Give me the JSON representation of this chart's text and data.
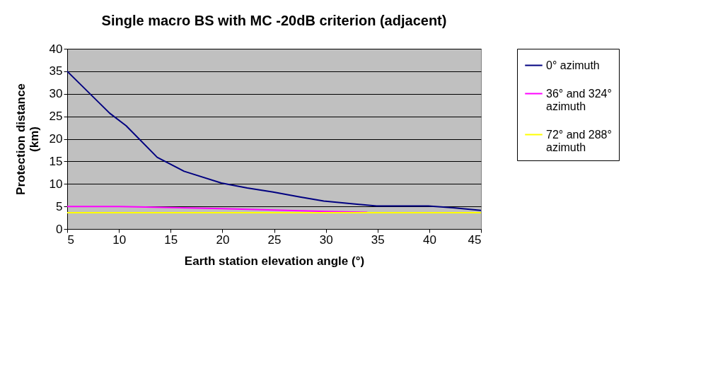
{
  "chart_data": {
    "type": "line",
    "title": "Single macro BS with MC -20dB criterion (adjacent)",
    "xlabel": "Earth station elevation angle (°)",
    "ylabel": "Protection distance (km)",
    "xlim": [
      5,
      45
    ],
    "xticks": [
      5,
      10,
      15,
      20,
      25,
      30,
      35,
      40,
      45
    ],
    "ylim": [
      0,
      40
    ],
    "yticks": [
      0,
      5,
      10,
      15,
      20,
      25,
      30,
      35,
      40
    ],
    "grid": "y",
    "legend": "right",
    "marker": "none",
    "line_style": "solid",
    "series": [
      {
        "name": "0° azimuth",
        "color": "#000080",
        "x": [
          5,
          9.1,
          10.7,
          13.7,
          16.3,
          19.9,
          22.4,
          24.9,
          27.5,
          29.8,
          34.9,
          39.9,
          42.3,
          45
        ],
        "values": [
          35,
          25.7,
          22.9,
          15.9,
          12.8,
          10.2,
          9.1,
          8.2,
          7.1,
          6.2,
          5.1,
          5.1,
          4.7,
          4.1
        ]
      },
      {
        "name": "36° and 324° azimuth",
        "color": "#ff00ff",
        "x": [
          5,
          10,
          20,
          30,
          34
        ],
        "values": [
          5,
          5,
          4.5,
          3.9,
          3.7
        ]
      },
      {
        "name": "72° and 288° azimuth",
        "color": "#ffff00",
        "x": [
          5,
          45
        ],
        "values": [
          3.6,
          3.6
        ]
      }
    ]
  }
}
